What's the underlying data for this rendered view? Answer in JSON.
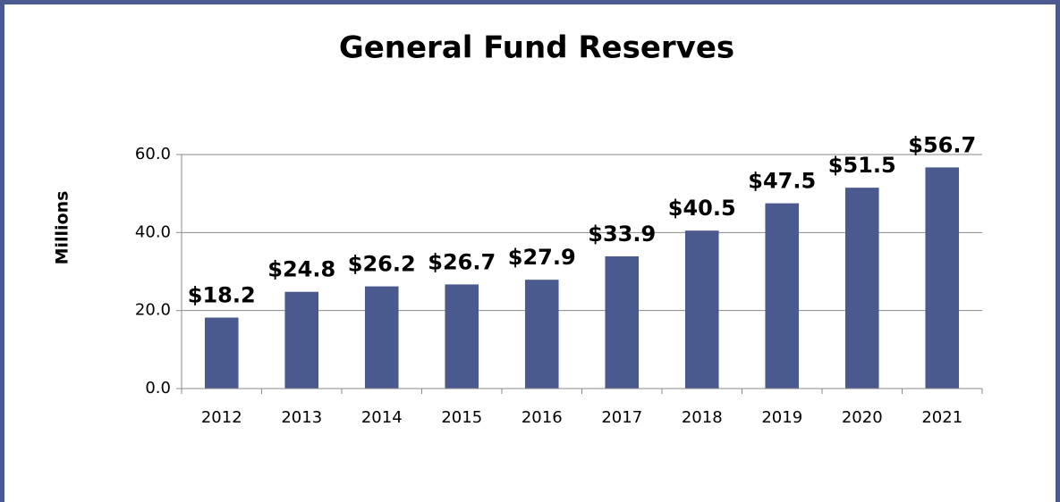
{
  "chart_data": {
    "type": "bar",
    "title": "General Fund Reserves",
    "y_label": "Millions",
    "categories": [
      "2012",
      "2013",
      "2014",
      "2015",
      "2016",
      "2017",
      "2018",
      "2019",
      "2020",
      "2021"
    ],
    "values": [
      18.2,
      24.8,
      26.2,
      26.7,
      27.9,
      33.9,
      40.5,
      47.5,
      51.5,
      56.7
    ],
    "value_labels": [
      "$18.2",
      "$24.8",
      "$26.2",
      "$26.7",
      "$27.9",
      "$33.9",
      "$40.5",
      "$47.5",
      "$51.5",
      "$56.7"
    ],
    "color": "#4a5a8f",
    "ylim": [
      0,
      60
    ],
    "yticks": [
      {
        "value": 0,
        "label": "0.0"
      },
      {
        "value": 20,
        "label": "20.0"
      },
      {
        "value": 40,
        "label": "40.0"
      },
      {
        "value": 60,
        "label": "60.0"
      }
    ],
    "grid": true
  }
}
